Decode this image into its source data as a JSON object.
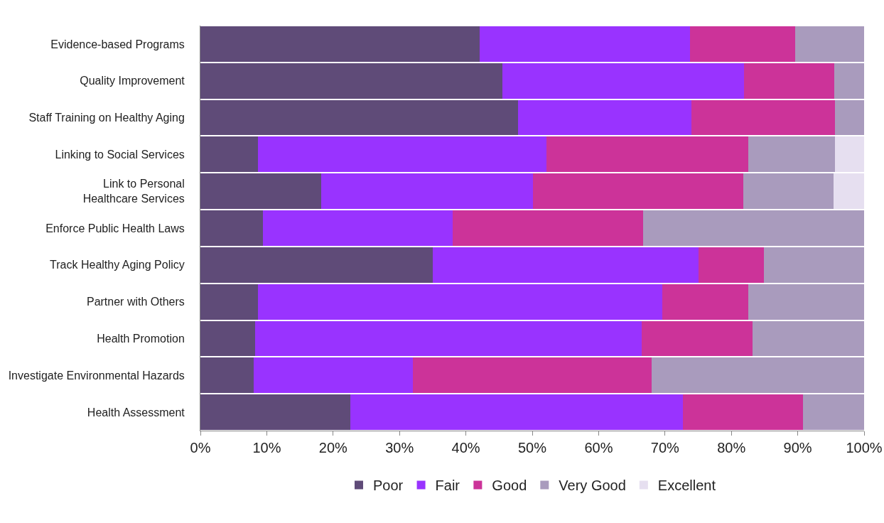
{
  "chart_data": {
    "type": "bar",
    "orientation": "horizontal",
    "stacked": true,
    "categories": [
      "Evidence-based Programs",
      "Quality Improvement",
      "Staff Training on Healthy Aging",
      "Linking to Social Services",
      "Link to Personal\nHealthcare Services",
      "Enforce Public Health Laws",
      "Track Healthy Aging Policy",
      "Partner with Others",
      "Health Promotion",
      "Investigate Environmental Hazards",
      "Health Assessment"
    ],
    "series": [
      {
        "name": "Poor",
        "color": "#5f4b78",
        "values": [
          42.1,
          45.5,
          47.9,
          8.7,
          18.2,
          9.4,
          35.0,
          8.7,
          8.2,
          8.0,
          22.6
        ]
      },
      {
        "name": "Fair",
        "color": "#9933ff",
        "values": [
          31.7,
          36.4,
          26.1,
          43.4,
          31.9,
          28.6,
          40.0,
          60.9,
          58.3,
          24.0,
          50.1
        ]
      },
      {
        "name": "Good",
        "color": "#cc3399",
        "values": [
          15.8,
          13.6,
          21.6,
          30.4,
          31.7,
          28.7,
          9.9,
          12.9,
          16.7,
          36.0,
          18.1
        ]
      },
      {
        "name": "Very Good",
        "color": "#a99bbd",
        "values": [
          10.4,
          4.5,
          4.4,
          13.1,
          13.6,
          33.3,
          15.1,
          17.5,
          16.8,
          32.0,
          9.2
        ]
      },
      {
        "name": "Excellent",
        "color": "#e6dff0",
        "values": [
          null,
          null,
          null,
          4.4,
          4.6,
          null,
          null,
          null,
          null,
          null,
          null
        ]
      }
    ],
    "xlim": [
      0,
      100
    ],
    "xticks": [
      {
        "value": 0,
        "label": "0%"
      },
      {
        "value": 10,
        "label": "10%"
      },
      {
        "value": 20,
        "label": "20%"
      },
      {
        "value": 30,
        "label": "30%"
      },
      {
        "value": 40,
        "label": "40%"
      },
      {
        "value": 50,
        "label": "50%"
      },
      {
        "value": 60,
        "label": "60%"
      },
      {
        "value": 70,
        "label": "70%"
      },
      {
        "value": 80,
        "label": "80%"
      },
      {
        "value": 90,
        "label": "90%"
      },
      {
        "value": 100,
        "label": "100%"
      }
    ],
    "grid": false,
    "legend": "bottom"
  }
}
